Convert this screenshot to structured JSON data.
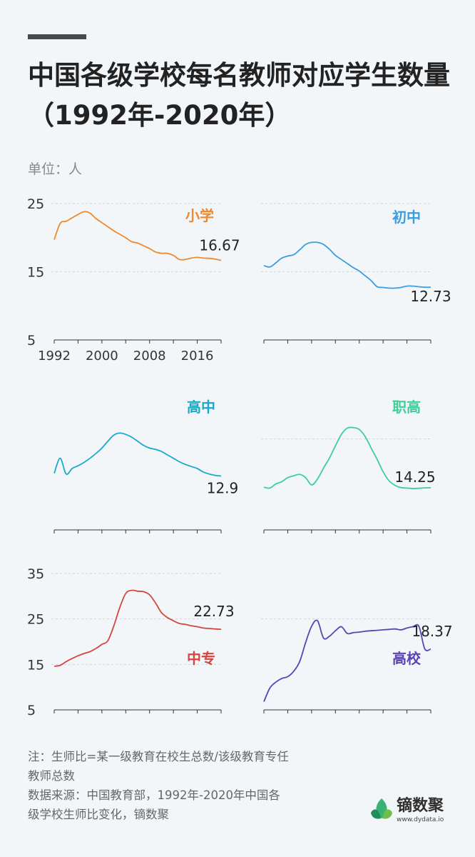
{
  "title": "中国各级学校每名教师对应学生数量（1992年-2020年）",
  "unit": "单位：人",
  "chart_data": [
    {
      "type": "line",
      "name": "小学",
      "color": "#f0882c",
      "x": [
        1992,
        1993,
        1994,
        1995,
        1996,
        1997,
        1998,
        1999,
        2000,
        2001,
        2002,
        2003,
        2004,
        2005,
        2006,
        2007,
        2008,
        2009,
        2010,
        2011,
        2012,
        2013,
        2014,
        2015,
        2016,
        2017,
        2018,
        2019,
        2020
      ],
      "values": [
        19.7,
        22.1,
        22.4,
        22.9,
        23.4,
        23.8,
        23.6,
        22.8,
        22.2,
        21.6,
        21.0,
        20.5,
        19.98,
        19.4,
        19.2,
        18.8,
        18.4,
        17.9,
        17.7,
        17.7,
        17.4,
        16.8,
        16.8,
        17.0,
        17.1,
        17.0,
        16.97,
        16.85,
        16.67
      ],
      "end_label": "16.67",
      "ylim": [
        5,
        25
      ],
      "yticks": [
        "5",
        "15",
        "25"
      ],
      "xticks": [
        "1992",
        "2000",
        "2008",
        "2016"
      ]
    },
    {
      "type": "line",
      "name": "初中",
      "color": "#3a9de0",
      "x": [
        1992,
        1993,
        1994,
        1995,
        1996,
        1997,
        1998,
        1999,
        2000,
        2001,
        2002,
        2003,
        2004,
        2005,
        2006,
        2007,
        2008,
        2009,
        2010,
        2011,
        2012,
        2013,
        2014,
        2015,
        2016,
        2017,
        2018,
        2019,
        2020
      ],
      "values": [
        15.9,
        15.7,
        16.3,
        17.0,
        17.3,
        17.5,
        18.2,
        19.0,
        19.3,
        19.3,
        19.0,
        18.3,
        17.4,
        16.8,
        16.2,
        15.6,
        15.1,
        14.4,
        13.7,
        12.8,
        12.7,
        12.6,
        12.6,
        12.7,
        12.9,
        12.9,
        12.8,
        12.73,
        12.73
      ],
      "end_label": "12.73",
      "ylim": [
        5,
        25
      ]
    },
    {
      "type": "line",
      "name": "高中",
      "color": "#1aa9c7",
      "x": [
        1992,
        1993,
        1994,
        1995,
        1996,
        1997,
        1998,
        1999,
        2000,
        2001,
        2002,
        2003,
        2004,
        2005,
        2006,
        2007,
        2008,
        2009,
        2010,
        2011,
        2012,
        2013,
        2014,
        2015,
        2016,
        2017,
        2018,
        2019,
        2020
      ],
      "values": [
        13.3,
        15.5,
        13.2,
        14.0,
        14.4,
        14.9,
        15.5,
        16.2,
        17.0,
        18.0,
        18.9,
        19.2,
        19.0,
        18.6,
        18.0,
        17.4,
        17.0,
        16.8,
        16.5,
        16.0,
        15.5,
        15.0,
        14.6,
        14.3,
        14.0,
        13.5,
        13.2,
        13.0,
        12.9
      ],
      "end_label": "12.9",
      "ylim": [
        5,
        25
      ]
    },
    {
      "type": "line",
      "name": "职高",
      "color": "#3fcd9a",
      "x": [
        1992,
        1993,
        1994,
        1995,
        1996,
        1997,
        1998,
        1999,
        2000,
        2001,
        2002,
        2003,
        2004,
        2005,
        2006,
        2007,
        2008,
        2009,
        2010,
        2011,
        2012,
        2013,
        2014,
        2015,
        2016,
        2017,
        2018,
        2019,
        2020
      ],
      "values": [
        14.4,
        14.2,
        15.1,
        15.6,
        16.5,
        16.9,
        17.2,
        16.5,
        14.9,
        16.2,
        18.6,
        20.8,
        23.5,
        26.0,
        27.4,
        27.5,
        27.1,
        25.5,
        23.0,
        20.5,
        17.8,
        15.8,
        14.8,
        14.3,
        14.2,
        14.1,
        14.15,
        14.25,
        14.25
      ],
      "end_label": "14.25",
      "ylim": [
        5,
        35
      ]
    },
    {
      "type": "line",
      "name": "中专",
      "color": "#d2463f",
      "x": [
        1992,
        1993,
        1994,
        1995,
        1996,
        1997,
        1998,
        1999,
        2000,
        2001,
        2002,
        2003,
        2004,
        2005,
        2006,
        2007,
        2008,
        2009,
        2010,
        2011,
        2012,
        2013,
        2014,
        2015,
        2016,
        2017,
        2018,
        2019,
        2020
      ],
      "values": [
        14.6,
        14.8,
        15.6,
        16.3,
        16.9,
        17.4,
        17.8,
        18.5,
        19.4,
        20.2,
        23.5,
        27.5,
        30.6,
        31.3,
        31.1,
        31.0,
        30.3,
        28.5,
        26.4,
        25.3,
        24.6,
        24.0,
        23.8,
        23.5,
        23.3,
        23.0,
        22.9,
        22.8,
        22.73
      ],
      "end_label": "22.73",
      "ylim": [
        5,
        35
      ],
      "yticks": [
        "5",
        "15",
        "25",
        "35"
      ]
    },
    {
      "type": "line",
      "name": "高校",
      "color": "#5a43b5",
      "x": [
        1992,
        1993,
        1994,
        1995,
        1996,
        1997,
        1998,
        1999,
        2000,
        2001,
        2002,
        2003,
        2004,
        2005,
        2006,
        2007,
        2008,
        2009,
        2010,
        2011,
        2012,
        2013,
        2014,
        2015,
        2016,
        2017,
        2018,
        2019,
        2020
      ],
      "values": [
        6.8,
        9.8,
        11.1,
        11.9,
        12.3,
        13.5,
        15.6,
        19.8,
        23.4,
        24.6,
        20.8,
        21.2,
        22.4,
        23.3,
        21.8,
        22.0,
        22.1,
        22.3,
        22.4,
        22.5,
        22.6,
        22.7,
        22.8,
        22.6,
        23.0,
        23.3,
        23.4,
        18.4,
        18.37
      ],
      "end_label": "18.37",
      "ylim": [
        5,
        35
      ]
    }
  ],
  "note": [
    "注：生师比=某一级教育在校生总数/该级教育专任",
    "教师总数",
    "数据来源：中国教育部，1992年-2020年中国各",
    "级学校生师比变化，镝数聚"
  ],
  "logo": {
    "name": "镝数聚",
    "url": "www.dydata.io"
  }
}
